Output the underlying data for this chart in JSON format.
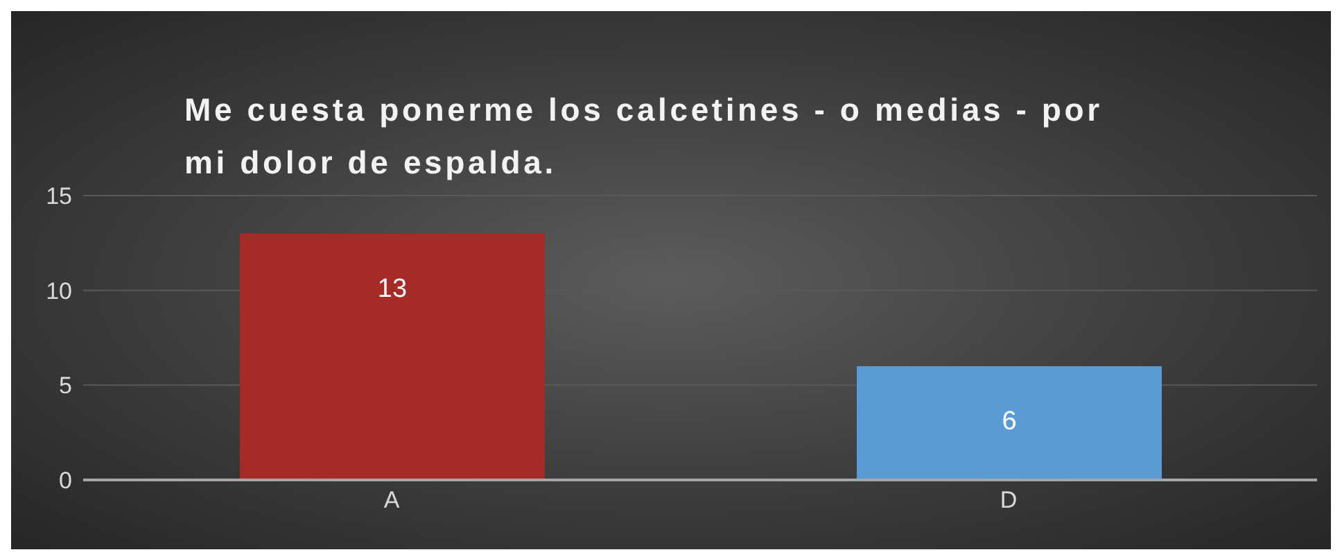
{
  "chart_data": {
    "type": "bar",
    "title": "Me cuesta ponerme los calcetines - o medias - por mi dolor de espalda.",
    "categories": [
      "A",
      "D"
    ],
    "values": [
      13,
      6
    ],
    "colors": [
      "#a52b27",
      "#5b9bd5"
    ],
    "ylim": [
      0,
      15
    ],
    "yticks": [
      0,
      5,
      10,
      15
    ],
    "grid": "y",
    "data_labels": true
  }
}
